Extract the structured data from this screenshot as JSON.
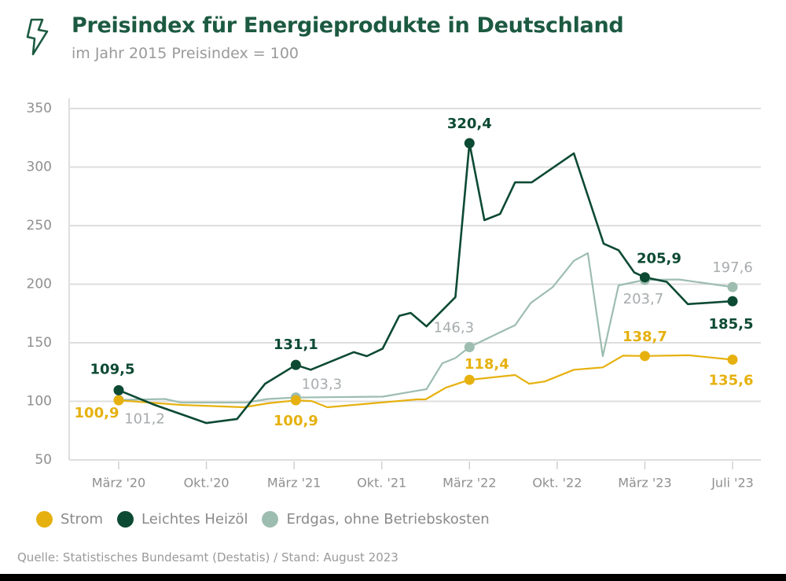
{
  "header": {
    "icon": "lightning-icon",
    "title": "Preisindex für Energieprodukte in Deutschland",
    "subtitle": "im Jahr 2015 Preisindex = 100"
  },
  "chart_data": {
    "type": "line",
    "title": "Preisindex für Energieprodukte in Deutschland",
    "subtitle": "im Jahr 2015 Preisindex = 100",
    "xlabel": "",
    "ylabel": "",
    "ylim": [
      50,
      350
    ],
    "yticks": [
      50,
      100,
      150,
      200,
      250,
      300,
      350
    ],
    "ytick_labels": [
      "50",
      "100",
      "150",
      "200",
      "250",
      "300",
      "350"
    ],
    "xticks": [
      "März '20",
      "Okt.'20",
      "März '21",
      "Okt. '21",
      "März '22",
      "Okt. '22",
      "März '23",
      "Juli '23"
    ],
    "x_note": "x values are positions on the category axis (0 = März '20 … 7 = Juli '23)",
    "grid": "horizontal",
    "legend_position": "bottom-left",
    "series": [
      {
        "name": "Strom",
        "color": "#e6b10f",
        "x": [
          0,
          0.71,
          1.43,
          1.7,
          2.02,
          2.2,
          2.38,
          3.4,
          3.5,
          3.73,
          4.0,
          4.52,
          4.68,
          4.86,
          5.19,
          5.52,
          5.75,
          6.0,
          6.5,
          7.0
        ],
        "y": [
          100.9,
          97,
          95,
          98.3,
          100.9,
          100.3,
          95,
          101.7,
          101.7,
          111.7,
          118.4,
          122.5,
          115,
          117,
          127,
          129,
          139,
          138.7,
          139.3,
          135.6
        ],
        "markers": [
          0,
          4,
          10,
          17,
          19
        ]
      },
      {
        "name": "Leichtes Heizöl",
        "color": "#0d4a33",
        "x": [
          0,
          0.41,
          1.0,
          1.35,
          1.67,
          2.02,
          2.19,
          2.68,
          2.83,
          3.01,
          3.2,
          3.33,
          3.51,
          3.84,
          4.0,
          4.17,
          4.35,
          4.52,
          4.71,
          5.19,
          5.53,
          5.7,
          5.88,
          6.0,
          6.25,
          6.49,
          7.0
        ],
        "y": [
          109.5,
          97,
          81.5,
          85,
          115,
          131.1,
          127,
          142,
          138.6,
          145,
          173,
          175.5,
          164,
          189,
          320.4,
          254.7,
          260,
          287,
          287,
          311.7,
          234.6,
          229,
          210,
          205.9,
          202,
          183,
          185.5
        ],
        "markers": [
          0,
          5,
          14,
          23,
          26
        ]
      },
      {
        "name": "Erdgas, ohne Betriebskosten",
        "color": "#9dbdb0",
        "x": [
          0,
          0.53,
          0.71,
          1.45,
          1.7,
          2.02,
          3.01,
          3.4,
          3.51,
          3.69,
          3.84,
          4.0,
          4.35,
          4.52,
          4.7,
          4.95,
          5.19,
          5.35,
          5.52,
          5.7,
          6.0,
          6.39,
          7.0
        ],
        "y": [
          101.2,
          102,
          99,
          99,
          102,
          103.3,
          104,
          109,
          110.4,
          132.5,
          137,
          146.3,
          159,
          165,
          184,
          197.6,
          220,
          226.5,
          138.6,
          199,
          203.7,
          204,
          197.6
        ],
        "markers": [
          0,
          5,
          11,
          20,
          22
        ]
      }
    ],
    "annotations": [
      {
        "series": "Leichtes Heizöl",
        "x": 0,
        "y": 109.5,
        "text": "109,5"
      },
      {
        "series": "Leichtes Heizöl",
        "x": 2.02,
        "y": 131.1,
        "text": "131,1"
      },
      {
        "series": "Leichtes Heizöl",
        "x": 4.0,
        "y": 320.4,
        "text": "320,4"
      },
      {
        "series": "Leichtes Heizöl",
        "x": 6.0,
        "y": 205.9,
        "text": "205,9"
      },
      {
        "series": "Leichtes Heizöl",
        "x": 7.0,
        "y": 185.5,
        "text": "185,5"
      },
      {
        "series": "Erdgas, ohne Betriebskosten",
        "x": 0,
        "y": 101.2,
        "text": "101,2"
      },
      {
        "series": "Erdgas, ohne Betriebskosten",
        "x": 2.02,
        "y": 103.3,
        "text": "103,3"
      },
      {
        "series": "Erdgas, ohne Betriebskosten",
        "x": 4.0,
        "y": 146.3,
        "text": "146,3"
      },
      {
        "series": "Erdgas, ohne Betriebskosten",
        "x": 6.0,
        "y": 203.7,
        "text": "203,7"
      },
      {
        "series": "Erdgas, ohne Betriebskosten",
        "x": 7.0,
        "y": 197.6,
        "text": "197,6"
      },
      {
        "series": "Strom",
        "x": 0,
        "y": 100.9,
        "text": "100,9"
      },
      {
        "series": "Strom",
        "x": 2.02,
        "y": 100.9,
        "text": "100,9"
      },
      {
        "series": "Strom",
        "x": 4.0,
        "y": 118.4,
        "text": "118,4"
      },
      {
        "series": "Strom",
        "x": 6.0,
        "y": 138.7,
        "text": "138,7"
      },
      {
        "series": "Strom",
        "x": 7.0,
        "y": 135.6,
        "text": "135,6"
      }
    ]
  },
  "legend": [
    {
      "label": "Strom",
      "color": "#e6b10f"
    },
    {
      "label": "Leichtes Heizöl",
      "color": "#0d4a33"
    },
    {
      "label": "Erdgas, ohne Betriebskosten",
      "color": "#9dbdb0"
    }
  ],
  "footer": {
    "source": "Quelle: Statistisches Bundesamt (Destatis)  /  Stand: August 2023"
  },
  "colors": {
    "title": "#1c5a41",
    "erdgas_label": "#a7acae"
  }
}
